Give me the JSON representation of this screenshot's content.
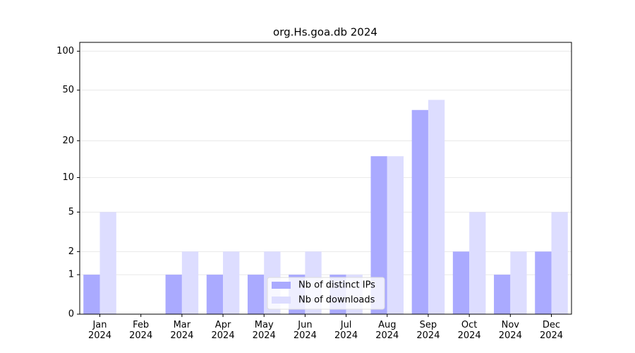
{
  "chart_data": {
    "type": "bar",
    "title": "org.Hs.goa.db 2024",
    "categories": [
      "Jan\n2024",
      "Feb\n2024",
      "Mar\n2024",
      "Apr\n2024",
      "May\n2024",
      "Jun\n2024",
      "Jul\n2024",
      "Aug\n2024",
      "Sep\n2024",
      "Oct\n2024",
      "Nov\n2024",
      "Dec\n2024"
    ],
    "series": [
      {
        "name": "Nb of distinct IPs",
        "color": "#aaaaff",
        "values": [
          1,
          0,
          1,
          1,
          1,
          1,
          1,
          15,
          35,
          2,
          1,
          2
        ]
      },
      {
        "name": "Nb of downloads",
        "color": "#ddddff",
        "values": [
          5,
          0,
          2,
          2,
          2,
          2,
          1,
          15,
          42,
          5,
          2,
          5
        ]
      }
    ],
    "yscale": "log1p",
    "ylim": [
      0,
      117
    ],
    "yticks": [
      0,
      1,
      2,
      5,
      10,
      20,
      50,
      100
    ],
    "grid": true,
    "legend": "lower center"
  }
}
